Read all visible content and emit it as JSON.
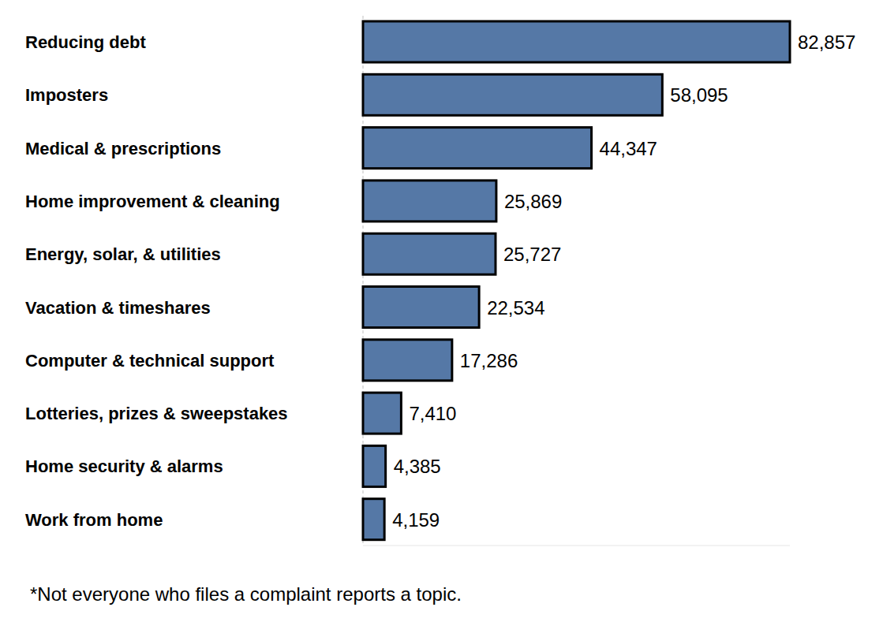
{
  "chart_data": {
    "type": "bar",
    "orientation": "horizontal",
    "categories": [
      "Reducing debt",
      "Imposters",
      "Medical & prescriptions",
      "Home improvement & cleaning",
      "Energy, solar, & utilities",
      "Vacation & timeshares",
      "Computer & technical support",
      "Lotteries, prizes & sweepstakes",
      "Home security & alarms",
      "Work from home"
    ],
    "values": [
      82857,
      58095,
      44347,
      25869,
      25727,
      22534,
      17286,
      7410,
      4385,
      4159
    ],
    "value_labels": [
      "82,857",
      "58,095",
      "44,347",
      "25,869",
      "25,727",
      "22,534",
      "17,286",
      "7,410",
      "4,385",
      "4,159"
    ],
    "color": "#5578a6",
    "xlim": [
      0,
      82857
    ],
    "data_labels": true,
    "tick_labels": "y",
    "grid": false,
    "annotations": [
      "*Not everyone who files a complaint reports a topic."
    ]
  }
}
